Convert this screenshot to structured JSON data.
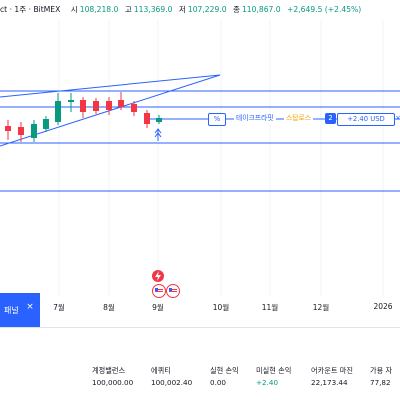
{
  "header": {
    "symbol": "ct · 1주 · BitMEX",
    "open_label": "시",
    "open_value": "108,218.0",
    "high_label": "고",
    "high_value": "113,369.0",
    "low_label": "저",
    "low_value": "107,229.0",
    "close_label": "종",
    "close_value": "110,867.0",
    "change": "+2,649.5 (+2.45%)"
  },
  "colors": {
    "up": "#089981",
    "down": "#f23645",
    "line": "#2962ff",
    "stop": "#f7a600"
  },
  "order_line": {
    "percent_icon": "%",
    "tp_label": "테이크프라핏",
    "sl_label": "스탑로스",
    "quantity": "2",
    "pnl": "+2.40 USD",
    "close_icon": "×"
  },
  "event_badges": {
    "lightning_icon": "lightning-icon",
    "flag_icon": "us-flag-icon"
  },
  "time_axis": {
    "ticks": [
      "7월",
      "8월",
      "9월",
      "10월",
      "11월",
      "12월",
      "2026"
    ]
  },
  "panel": {
    "label": "패널",
    "close_icon": "×"
  },
  "account": {
    "items": [
      {
        "title": "계정밸런스",
        "value": "100,000.00"
      },
      {
        "title": "에퀴티",
        "value": "100,002.40"
      },
      {
        "title": "실현 손익",
        "value": "0.00"
      },
      {
        "title": "미실현 손익",
        "value": "+2.40"
      },
      {
        "title": "어카운트 마진",
        "value": "22,173.44"
      },
      {
        "title": "가용 자",
        "value": "77,82"
      }
    ]
  }
}
